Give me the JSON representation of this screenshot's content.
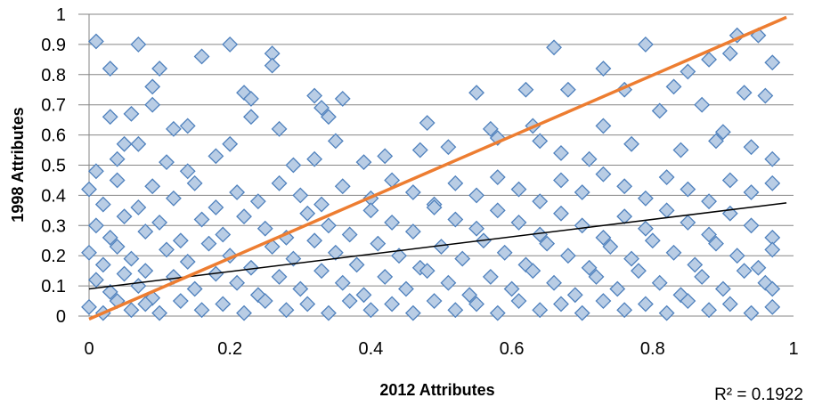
{
  "chart_data": {
    "type": "scatter",
    "xlabel": "2012 Attributes",
    "ylabel": "1998 Attributes",
    "xlim": [
      0,
      1
    ],
    "ylim": [
      0,
      1
    ],
    "x_ticks": [
      "0",
      "0.2",
      "0.4",
      "0.6",
      "0.8",
      "1"
    ],
    "y_ticks": [
      "0",
      "0.1",
      "0.2",
      "0.3",
      "0.4",
      "0.5",
      "0.6",
      "0.7",
      "0.8",
      "0.9",
      "1"
    ],
    "grid": "horizontal",
    "marker": "diamond",
    "colors": {
      "marker_fill": "#b9cde5",
      "marker_stroke": "#4f81bd",
      "trendline": "#000000",
      "reference_line": "#ed7d31",
      "grid": "#868686"
    },
    "series": [
      {
        "points": [
          [
            0.01,
            0.91
          ],
          [
            0.07,
            0.9
          ],
          [
            0.2,
            0.9
          ],
          [
            0.66,
            0.89
          ],
          [
            0.79,
            0.9
          ],
          [
            0.92,
            0.93
          ],
          [
            0.95,
            0.93
          ],
          [
            0.03,
            0.82
          ],
          [
            0.1,
            0.82
          ],
          [
            0.16,
            0.86
          ],
          [
            0.26,
            0.87
          ],
          [
            0.26,
            0.83
          ],
          [
            0.73,
            0.82
          ],
          [
            0.85,
            0.81
          ],
          [
            0.88,
            0.85
          ],
          [
            0.91,
            0.87
          ],
          [
            0.97,
            0.84
          ],
          [
            0.09,
            0.76
          ],
          [
            0.22,
            0.74
          ],
          [
            0.23,
            0.72
          ],
          [
            0.32,
            0.73
          ],
          [
            0.36,
            0.72
          ],
          [
            0.55,
            0.74
          ],
          [
            0.62,
            0.75
          ],
          [
            0.68,
            0.75
          ],
          [
            0.76,
            0.75
          ],
          [
            0.83,
            0.76
          ],
          [
            0.87,
            0.7
          ],
          [
            0.93,
            0.74
          ],
          [
            0.96,
            0.73
          ],
          [
            0.03,
            0.66
          ],
          [
            0.06,
            0.67
          ],
          [
            0.09,
            0.7
          ],
          [
            0.12,
            0.62
          ],
          [
            0.14,
            0.63
          ],
          [
            0.23,
            0.66
          ],
          [
            0.27,
            0.62
          ],
          [
            0.33,
            0.69
          ],
          [
            0.34,
            0.66
          ],
          [
            0.48,
            0.64
          ],
          [
            0.57,
            0.62
          ],
          [
            0.63,
            0.63
          ],
          [
            0.73,
            0.63
          ],
          [
            0.81,
            0.68
          ],
          [
            0.9,
            0.61
          ],
          [
            0.01,
            0.48
          ],
          [
            0.04,
            0.52
          ],
          [
            0.05,
            0.57
          ],
          [
            0.07,
            0.57
          ],
          [
            0.11,
            0.51
          ],
          [
            0.14,
            0.48
          ],
          [
            0.18,
            0.53
          ],
          [
            0.2,
            0.57
          ],
          [
            0.29,
            0.5
          ],
          [
            0.32,
            0.52
          ],
          [
            0.35,
            0.58
          ],
          [
            0.39,
            0.51
          ],
          [
            0.42,
            0.53
          ],
          [
            0.47,
            0.55
          ],
          [
            0.51,
            0.56
          ],
          [
            0.58,
            0.59
          ],
          [
            0.64,
            0.58
          ],
          [
            0.67,
            0.54
          ],
          [
            0.71,
            0.52
          ],
          [
            0.77,
            0.57
          ],
          [
            0.84,
            0.55
          ],
          [
            0.89,
            0.58
          ],
          [
            0.94,
            0.56
          ],
          [
            0.97,
            0.52
          ],
          [
            0.0,
            0.42
          ],
          [
            0.02,
            0.37
          ],
          [
            0.04,
            0.45
          ],
          [
            0.07,
            0.36
          ],
          [
            0.09,
            0.43
          ],
          [
            0.12,
            0.39
          ],
          [
            0.15,
            0.44
          ],
          [
            0.18,
            0.36
          ],
          [
            0.21,
            0.41
          ],
          [
            0.24,
            0.38
          ],
          [
            0.27,
            0.44
          ],
          [
            0.3,
            0.4
          ],
          [
            0.33,
            0.37
          ],
          [
            0.36,
            0.43
          ],
          [
            0.4,
            0.39
          ],
          [
            0.43,
            0.45
          ],
          [
            0.46,
            0.41
          ],
          [
            0.49,
            0.37
          ],
          [
            0.52,
            0.44
          ],
          [
            0.55,
            0.4
          ],
          [
            0.58,
            0.46
          ],
          [
            0.61,
            0.42
          ],
          [
            0.64,
            0.38
          ],
          [
            0.67,
            0.45
          ],
          [
            0.7,
            0.41
          ],
          [
            0.73,
            0.47
          ],
          [
            0.76,
            0.43
          ],
          [
            0.79,
            0.39
          ],
          [
            0.82,
            0.46
          ],
          [
            0.85,
            0.42
          ],
          [
            0.88,
            0.38
          ],
          [
            0.91,
            0.45
          ],
          [
            0.94,
            0.41
          ],
          [
            0.97,
            0.44
          ],
          [
            0.01,
            0.3
          ],
          [
            0.03,
            0.26
          ],
          [
            0.05,
            0.33
          ],
          [
            0.08,
            0.28
          ],
          [
            0.1,
            0.31
          ],
          [
            0.13,
            0.25
          ],
          [
            0.16,
            0.32
          ],
          [
            0.19,
            0.27
          ],
          [
            0.22,
            0.33
          ],
          [
            0.25,
            0.29
          ],
          [
            0.28,
            0.26
          ],
          [
            0.31,
            0.34
          ],
          [
            0.34,
            0.3
          ],
          [
            0.37,
            0.27
          ],
          [
            0.4,
            0.35
          ],
          [
            0.43,
            0.31
          ],
          [
            0.46,
            0.28
          ],
          [
            0.49,
            0.36
          ],
          [
            0.52,
            0.32
          ],
          [
            0.55,
            0.29
          ],
          [
            0.58,
            0.35
          ],
          [
            0.61,
            0.31
          ],
          [
            0.64,
            0.27
          ],
          [
            0.67,
            0.34
          ],
          [
            0.7,
            0.3
          ],
          [
            0.73,
            0.26
          ],
          [
            0.76,
            0.33
          ],
          [
            0.79,
            0.29
          ],
          [
            0.82,
            0.35
          ],
          [
            0.85,
            0.31
          ],
          [
            0.88,
            0.27
          ],
          [
            0.91,
            0.34
          ],
          [
            0.94,
            0.3
          ],
          [
            0.97,
            0.26
          ],
          [
            0.0,
            0.21
          ],
          [
            0.02,
            0.17
          ],
          [
            0.04,
            0.23
          ],
          [
            0.06,
            0.19
          ],
          [
            0.08,
            0.15
          ],
          [
            0.11,
            0.22
          ],
          [
            0.14,
            0.18
          ],
          [
            0.17,
            0.24
          ],
          [
            0.2,
            0.2
          ],
          [
            0.23,
            0.16
          ],
          [
            0.26,
            0.23
          ],
          [
            0.29,
            0.19
          ],
          [
            0.32,
            0.25
          ],
          [
            0.35,
            0.21
          ],
          [
            0.38,
            0.17
          ],
          [
            0.41,
            0.24
          ],
          [
            0.44,
            0.2
          ],
          [
            0.47,
            0.16
          ],
          [
            0.5,
            0.23
          ],
          [
            0.53,
            0.19
          ],
          [
            0.56,
            0.25
          ],
          [
            0.59,
            0.21
          ],
          [
            0.62,
            0.17
          ],
          [
            0.65,
            0.24
          ],
          [
            0.68,
            0.2
          ],
          [
            0.71,
            0.16
          ],
          [
            0.74,
            0.23
          ],
          [
            0.77,
            0.19
          ],
          [
            0.8,
            0.25
          ],
          [
            0.83,
            0.21
          ],
          [
            0.86,
            0.17
          ],
          [
            0.89,
            0.24
          ],
          [
            0.92,
            0.2
          ],
          [
            0.95,
            0.16
          ],
          [
            0.97,
            0.22
          ],
          [
            0.01,
            0.12
          ],
          [
            0.03,
            0.08
          ],
          [
            0.05,
            0.14
          ],
          [
            0.07,
            0.1
          ],
          [
            0.09,
            0.06
          ],
          [
            0.12,
            0.13
          ],
          [
            0.15,
            0.09
          ],
          [
            0.18,
            0.14
          ],
          [
            0.21,
            0.11
          ],
          [
            0.24,
            0.07
          ],
          [
            0.27,
            0.13
          ],
          [
            0.3,
            0.09
          ],
          [
            0.33,
            0.15
          ],
          [
            0.36,
            0.11
          ],
          [
            0.39,
            0.07
          ],
          [
            0.42,
            0.13
          ],
          [
            0.45,
            0.09
          ],
          [
            0.48,
            0.15
          ],
          [
            0.51,
            0.11
          ],
          [
            0.54,
            0.07
          ],
          [
            0.57,
            0.13
          ],
          [
            0.6,
            0.09
          ],
          [
            0.63,
            0.15
          ],
          [
            0.66,
            0.11
          ],
          [
            0.69,
            0.07
          ],
          [
            0.72,
            0.13
          ],
          [
            0.75,
            0.09
          ],
          [
            0.78,
            0.15
          ],
          [
            0.81,
            0.11
          ],
          [
            0.84,
            0.07
          ],
          [
            0.87,
            0.13
          ],
          [
            0.9,
            0.09
          ],
          [
            0.93,
            0.15
          ],
          [
            0.96,
            0.11
          ],
          [
            0.97,
            0.09
          ],
          [
            0.0,
            0.03
          ],
          [
            0.02,
            0.01
          ],
          [
            0.04,
            0.05
          ],
          [
            0.06,
            0.02
          ],
          [
            0.08,
            0.04
          ],
          [
            0.1,
            0.01
          ],
          [
            0.13,
            0.05
          ],
          [
            0.16,
            0.02
          ],
          [
            0.19,
            0.04
          ],
          [
            0.22,
            0.01
          ],
          [
            0.25,
            0.05
          ],
          [
            0.28,
            0.02
          ],
          [
            0.31,
            0.04
          ],
          [
            0.34,
            0.01
          ],
          [
            0.37,
            0.05
          ],
          [
            0.4,
            0.02
          ],
          [
            0.43,
            0.04
          ],
          [
            0.46,
            0.01
          ],
          [
            0.49,
            0.05
          ],
          [
            0.52,
            0.02
          ],
          [
            0.55,
            0.04
          ],
          [
            0.58,
            0.01
          ],
          [
            0.61,
            0.05
          ],
          [
            0.64,
            0.02
          ],
          [
            0.67,
            0.04
          ],
          [
            0.7,
            0.01
          ],
          [
            0.73,
            0.05
          ],
          [
            0.76,
            0.02
          ],
          [
            0.79,
            0.04
          ],
          [
            0.82,
            0.01
          ],
          [
            0.85,
            0.05
          ],
          [
            0.88,
            0.02
          ],
          [
            0.91,
            0.04
          ],
          [
            0.94,
            0.01
          ],
          [
            0.97,
            0.03
          ]
        ]
      }
    ],
    "trendline": {
      "type": "linear",
      "from": [
        0,
        0.09
      ],
      "to": [
        0.99,
        0.375
      ],
      "r2_label": "R² = 0.1922"
    },
    "reference_line": {
      "from": [
        0,
        -0.01
      ],
      "to": [
        0.99,
        0.99
      ]
    }
  }
}
